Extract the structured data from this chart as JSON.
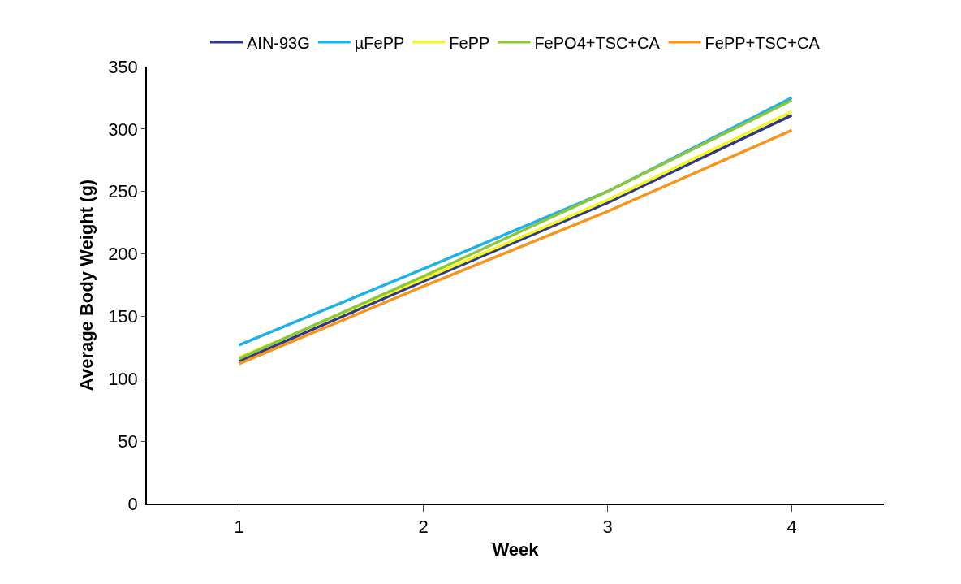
{
  "chart_data": {
    "type": "line",
    "xlabel": "Week",
    "ylabel": "Average Body Weight (g)",
    "categories": [
      "1",
      "2",
      "3",
      "4"
    ],
    "series": [
      {
        "name": "AIN-93G",
        "color": "#2e3a87",
        "values": [
          114,
          178,
          241,
          311
        ]
      },
      {
        "name": "µFePP",
        "color": "#1eb0e6",
        "values": [
          127,
          188,
          250,
          325
        ]
      },
      {
        "name": "FePP",
        "color": "#f5f52a",
        "values": [
          117,
          180,
          243,
          314
        ]
      },
      {
        "name": "FePO4+TSC+CA",
        "color": "#8cc63f",
        "values": [
          116,
          182,
          250,
          323
        ]
      },
      {
        "name": "FePP+TSC+CA",
        "color": "#f7941d",
        "values": [
          112,
          174,
          234,
          299
        ]
      }
    ],
    "ylim": [
      0,
      350
    ],
    "yticks": [
      0,
      50,
      100,
      150,
      200,
      250,
      300,
      350
    ],
    "grid": false,
    "legend": "top",
    "marker": "none",
    "line_style": "solid"
  }
}
